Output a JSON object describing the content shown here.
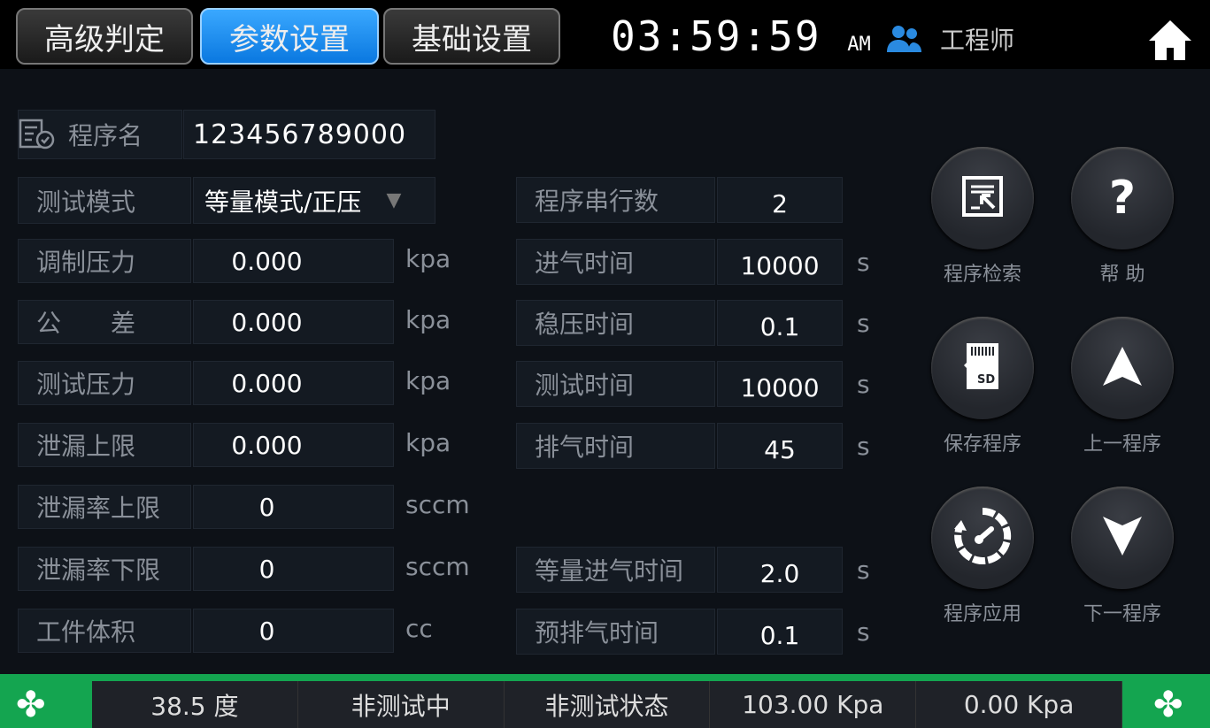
{
  "tabs": [
    {
      "label": "高级判定",
      "active": false
    },
    {
      "label": "参数设置",
      "active": true
    },
    {
      "label": "基础设置",
      "active": false
    }
  ],
  "clock": {
    "time": "03:59:59",
    "ampm": "AM"
  },
  "user": {
    "icon": "users-icon",
    "role": "工程师"
  },
  "home_icon": "home-icon",
  "program": {
    "label": "程序名",
    "value": "123456789000"
  },
  "test_mode": {
    "label": "测试模式",
    "value": "等量模式/正压"
  },
  "left_fields": [
    {
      "label": "调制压力",
      "value": "0.000",
      "unit": "kpa"
    },
    {
      "label": "公　　差",
      "value": "0.000",
      "unit": "kpa"
    },
    {
      "label": "测试压力",
      "value": "0.000",
      "unit": "kpa"
    },
    {
      "label": "泄漏上限",
      "value": "0.000",
      "unit": "kpa"
    },
    {
      "label": "泄漏率上限",
      "value": "0",
      "unit": "sccm"
    },
    {
      "label": "泄漏率下限",
      "value": "0",
      "unit": "sccm"
    },
    {
      "label": "工件体积",
      "value": "0",
      "unit": "cc"
    }
  ],
  "right_fields": [
    {
      "label": "程序串行数",
      "value": "2",
      "unit": ""
    },
    {
      "label": "进气时间",
      "value": "10000",
      "unit": "s"
    },
    {
      "label": "稳压时间",
      "value": "0.1",
      "unit": "s"
    },
    {
      "label": "测试时间",
      "value": "10000",
      "unit": "s"
    },
    {
      "label": "排气时间",
      "value": "45",
      "unit": "s"
    },
    {
      "label": "等量进气时间",
      "value": "2.0",
      "unit": "s"
    },
    {
      "label": "预排气时间",
      "value": "0.1",
      "unit": "s"
    }
  ],
  "buttons": [
    {
      "label": "程序检索",
      "icon": "search-program-icon"
    },
    {
      "label": "帮 助",
      "icon": "help-icon"
    },
    {
      "label": "保存程序",
      "icon": "sd-card-icon"
    },
    {
      "label": "上一程序",
      "icon": "arrow-up-icon"
    },
    {
      "label": "程序应用",
      "icon": "apply-gauge-icon"
    },
    {
      "label": "下一程序",
      "icon": "arrow-down-icon"
    }
  ],
  "status": [
    "38.5 度",
    "非测试中",
    "非测试状态",
    "103.00 Kpa",
    "0.00 Kpa"
  ],
  "colors": {
    "accent": "#0a78e0",
    "status_green": "#14a550",
    "background": "#0d1117"
  }
}
